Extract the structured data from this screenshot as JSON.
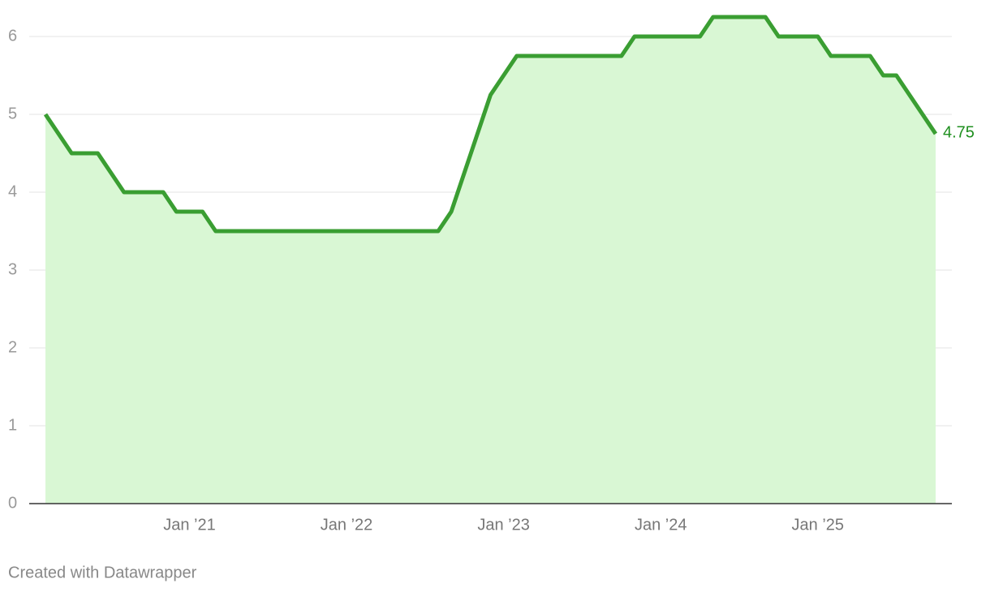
{
  "chart_data": {
    "type": "area",
    "x": [
      "2020-02",
      "2020-03",
      "2020-04",
      "2020-05",
      "2020-06",
      "2020-07",
      "2020-08",
      "2020-09",
      "2020-10",
      "2020-11",
      "2020-12",
      "2021-01",
      "2021-02",
      "2021-03",
      "2021-04",
      "2021-05",
      "2021-06",
      "2021-07",
      "2021-08",
      "2021-09",
      "2021-10",
      "2021-11",
      "2021-12",
      "2022-01",
      "2022-02",
      "2022-03",
      "2022-04",
      "2022-05",
      "2022-06",
      "2022-07",
      "2022-08",
      "2022-09",
      "2022-10",
      "2022-11",
      "2022-12",
      "2023-01",
      "2023-02",
      "2023-03",
      "2023-04",
      "2023-05",
      "2023-06",
      "2023-07",
      "2023-08",
      "2023-09",
      "2023-10",
      "2023-11",
      "2023-12",
      "2024-01",
      "2024-02",
      "2024-03",
      "2024-04",
      "2024-05",
      "2024-06",
      "2024-07",
      "2024-08",
      "2024-09",
      "2024-10",
      "2024-11",
      "2024-12",
      "2025-01",
      "2025-02",
      "2025-03",
      "2025-04",
      "2025-05",
      "2025-06",
      "2025-07",
      "2025-08",
      "2025-09",
      "2025-10"
    ],
    "values": [
      5,
      4.75,
      4.5,
      4.5,
      4.5,
      4.25,
      4,
      4,
      4,
      4,
      3.75,
      3.75,
      3.75,
      3.5,
      3.5,
      3.5,
      3.5,
      3.5,
      3.5,
      3.5,
      3.5,
      3.5,
      3.5,
      3.5,
      3.5,
      3.5,
      3.5,
      3.5,
      3.5,
      3.5,
      3.5,
      3.75,
      4.25,
      4.75,
      5.25,
      5.5,
      5.75,
      5.75,
      5.75,
      5.75,
      5.75,
      5.75,
      5.75,
      5.75,
      5.75,
      6,
      6,
      6,
      6,
      6,
      6,
      6.25,
      6.25,
      6.25,
      6.25,
      6.25,
      6,
      6,
      6,
      6,
      5.75,
      5.75,
      5.75,
      5.75,
      5.5,
      5.5,
      5.25,
      5,
      4.75
    ],
    "color": "#3a9e32",
    "area_color": "#d9f7d4",
    "label_color": "#1f8f1f",
    "xlim": [
      "2020-02",
      "2025-10"
    ],
    "xticks": [
      {
        "value": "2021-01",
        "label": "Jan ’21"
      },
      {
        "value": "2022-01",
        "label": "Jan ’22"
      },
      {
        "value": "2023-01",
        "label": "Jan ’23"
      },
      {
        "value": "2024-01",
        "label": "Jan ’24"
      },
      {
        "value": "2025-01",
        "label": "Jan ’25"
      }
    ],
    "ylim": [
      0,
      6
    ],
    "yticks": [
      0,
      1,
      2,
      3,
      4,
      5,
      6
    ],
    "grid": true,
    "footer": "Created with Datawrapper"
  }
}
